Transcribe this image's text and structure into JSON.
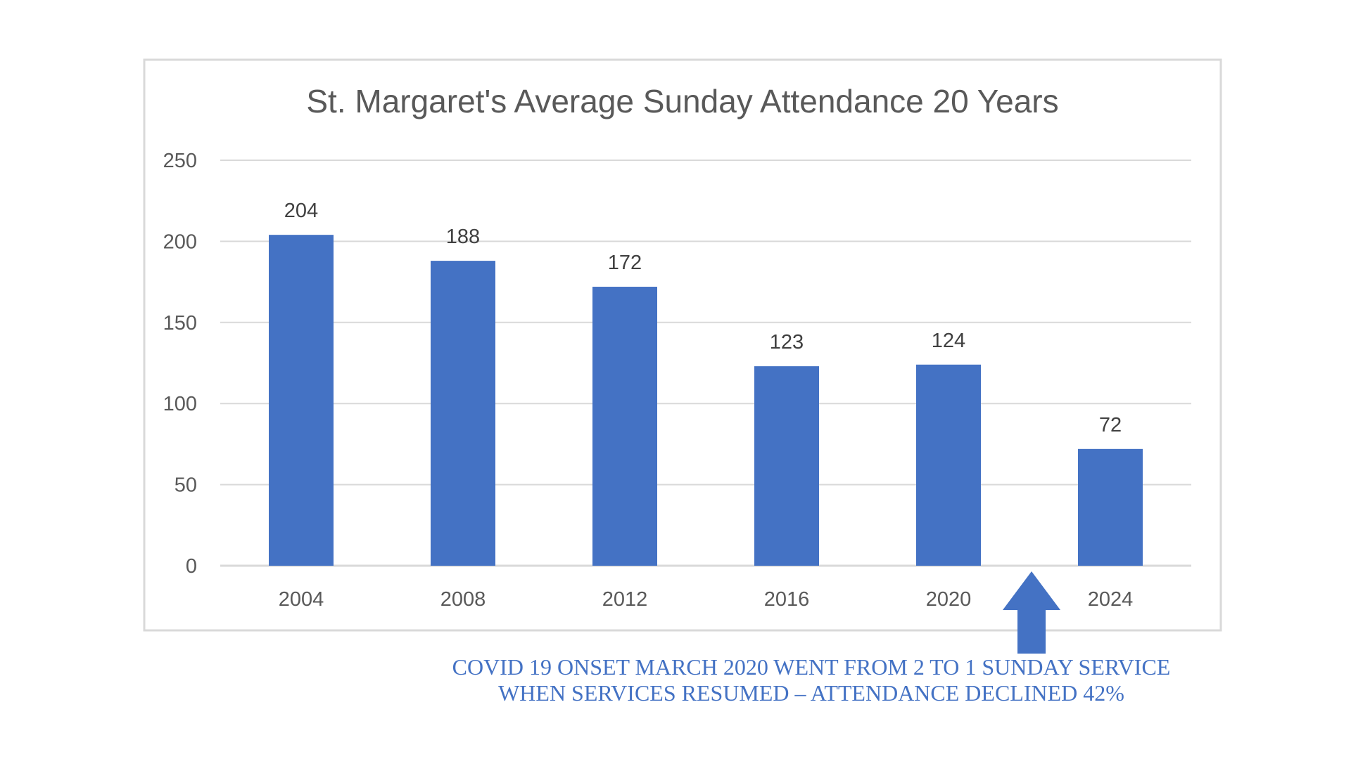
{
  "chart_data": {
    "type": "bar",
    "title": "St. Margaret's Average Sunday Attendance 20 Years",
    "categories": [
      "2004",
      "2008",
      "2012",
      "2016",
      "2020",
      "2024"
    ],
    "values": [
      204,
      188,
      172,
      123,
      124,
      72
    ],
    "ylim": [
      0,
      250
    ],
    "yticks": [
      0,
      50,
      100,
      150,
      200,
      250
    ],
    "grid": true,
    "data_labels": true,
    "annotation": {
      "line1": "COVID 19 ONSET MARCH 2020 WENT FROM 2 TO 1 SUNDAY SERVICE",
      "line2": "WHEN SERVICES RESUMED – ATTENDANCE DECLINED 42%"
    }
  },
  "colors": {
    "bar": "#4472c4",
    "grid": "#d9d9d9",
    "frame": "#d9d9d9",
    "annotation": "#4472c4"
  },
  "icons": {
    "annotation_arrow": "up-arrow-icon"
  }
}
